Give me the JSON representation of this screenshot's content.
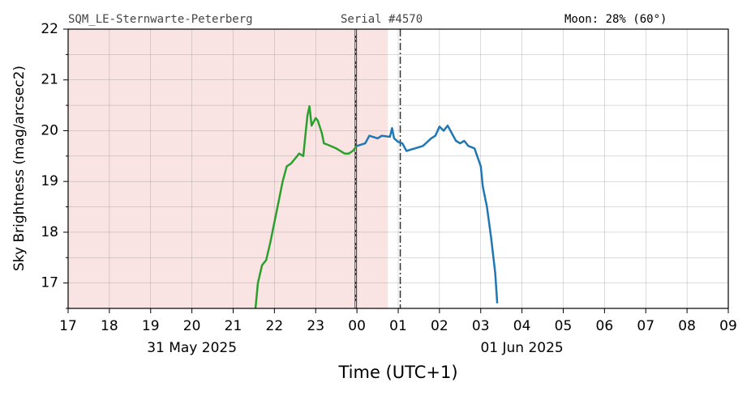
{
  "chart_data": {
    "type": "line",
    "header_left": "SQM_LE-Sternwarte-Peterberg",
    "header_center": "Serial #4570",
    "header_right": "Moon: 28% (60°)",
    "y_label": "Sky Brightness (mag/arcsec2)",
    "x_label": "Time (UTC+1)",
    "xlim": [
      17,
      33
    ],
    "ylim": [
      16.5,
      22
    ],
    "xticks": [
      17,
      18,
      19,
      20,
      21,
      22,
      23,
      {
        "value": 24,
        "label": "00"
      },
      {
        "value": 25,
        "label": "01"
      },
      {
        "value": 26,
        "label": "02"
      },
      {
        "value": 27,
        "label": "03"
      },
      {
        "value": 28,
        "label": "04"
      },
      {
        "value": 29,
        "label": "05"
      },
      {
        "value": 30,
        "label": "06"
      },
      {
        "value": 31,
        "label": "07"
      },
      {
        "value": 32,
        "label": "08"
      },
      {
        "value": 33,
        "label": "09"
      }
    ],
    "yticks": [
      17,
      18,
      19,
      20,
      21,
      22
    ],
    "y_minor_ticks": [
      16.5,
      17.5,
      18.5,
      19.5,
      20.5,
      21.5
    ],
    "date_labels": [
      {
        "value": 20,
        "label": "31 May 2025"
      },
      {
        "value": 28,
        "label": "01 Jun 2025"
      }
    ],
    "grid": true,
    "shaded_span": [
      17,
      24.75
    ],
    "shade_color": "#f9e3e3",
    "vlines": [
      23.97,
      25.05
    ],
    "series": [
      {
        "color": "#2ca02c",
        "x": [
          21.54,
          21.6,
          21.7,
          21.8,
          21.9,
          22.0,
          22.1,
          22.2,
          22.3,
          22.4,
          22.5,
          22.6,
          22.7,
          22.75,
          22.8,
          22.85,
          22.9,
          23.0,
          23.05,
          23.15,
          23.2,
          23.3,
          23.5,
          23.7,
          23.8,
          23.9,
          24.0
        ],
        "values": [
          16.5,
          17.0,
          17.35,
          17.45,
          17.8,
          18.2,
          18.6,
          19.0,
          19.3,
          19.35,
          19.45,
          19.55,
          19.5,
          19.9,
          20.3,
          20.48,
          20.1,
          20.25,
          20.2,
          19.95,
          19.75,
          19.72,
          19.65,
          19.55,
          19.55,
          19.6,
          19.7
        ]
      },
      {
        "color": "#1f77b4",
        "x": [
          24.0,
          24.2,
          24.3,
          24.5,
          24.6,
          24.8,
          24.85,
          24.9,
          25.0,
          25.1,
          25.2,
          25.4,
          25.6,
          25.8,
          25.9,
          26.0,
          26.1,
          26.2,
          26.3,
          26.4,
          26.5,
          26.6,
          26.7,
          26.85,
          27.0,
          27.05,
          27.15,
          27.25,
          27.35,
          27.4
        ],
        "values": [
          19.7,
          19.75,
          19.9,
          19.85,
          19.9,
          19.88,
          20.05,
          19.85,
          19.78,
          19.75,
          19.6,
          19.65,
          19.7,
          19.85,
          19.9,
          20.08,
          20.0,
          20.1,
          19.95,
          19.8,
          19.75,
          19.8,
          19.7,
          19.65,
          19.3,
          18.9,
          18.5,
          17.9,
          17.2,
          16.6
        ]
      }
    ]
  }
}
